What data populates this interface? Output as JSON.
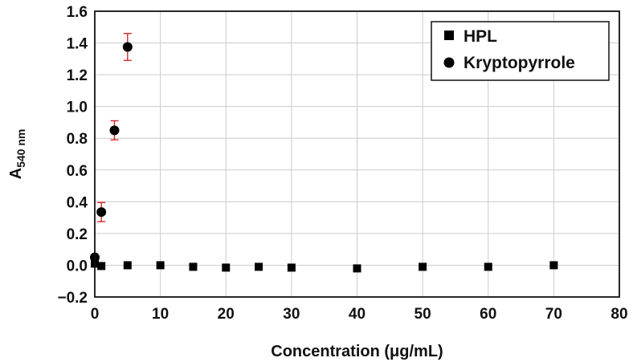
{
  "chart_data": {
    "type": "scatter",
    "title": "",
    "xlabel": "Concentration (μg/mL)",
    "ylabel_main": "A",
    "ylabel_sub": "540 nm",
    "xlim": [
      0,
      80
    ],
    "ylim": [
      -0.2,
      1.6
    ],
    "x_ticks": [
      "0",
      "10",
      "20",
      "30",
      "40",
      "50",
      "60",
      "70",
      "80"
    ],
    "y_ticks": [
      "−0.2",
      "0.0",
      "0.2",
      "0.4",
      "0.6",
      "0.8",
      "1.0",
      "1.2",
      "1.4",
      "1.6"
    ],
    "x_tick_values": [
      0,
      10,
      20,
      30,
      40,
      50,
      60,
      70,
      80
    ],
    "y_tick_values": [
      -0.2,
      0.0,
      0.2,
      0.4,
      0.6,
      0.8,
      1.0,
      1.2,
      1.4,
      1.6
    ],
    "grid": true,
    "legend_position": "top-right",
    "series": [
      {
        "name": "HPL",
        "marker": "square",
        "color": "#000000",
        "x": [
          0,
          1,
          5,
          10,
          15,
          20,
          25,
          30,
          40,
          50,
          60,
          70
        ],
        "y": [
          0.01,
          -0.005,
          0.0,
          0.0,
          -0.01,
          -0.015,
          -0.01,
          -0.015,
          -0.02,
          -0.01,
          -0.01,
          0.0
        ]
      },
      {
        "name": "Kryptopyrrole",
        "marker": "circle",
        "color": "#000000",
        "error_color": "#d62728",
        "x": [
          0,
          1,
          3,
          5
        ],
        "y": [
          0.05,
          0.335,
          0.85,
          1.375
        ],
        "err": [
          0.0,
          0.06,
          0.06,
          0.085
        ]
      }
    ]
  }
}
